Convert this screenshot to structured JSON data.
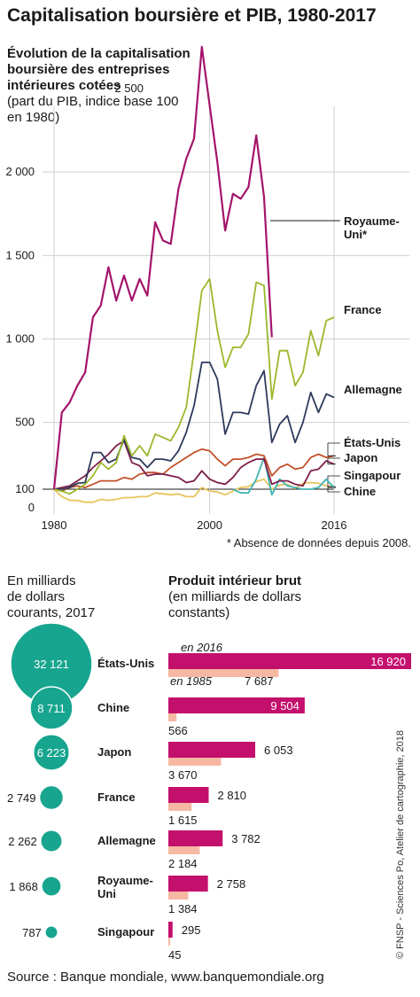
{
  "title": "Capitalisation boursière et PIB, 1980-2017",
  "colors": {
    "uk": "#a3146b",
    "france": "#9bb82c",
    "germany": "#2d3a5c",
    "usa": "#c3512a",
    "japan": "#7d1e4a",
    "singapore": "#e6c45c",
    "china": "#3fb5b3",
    "circle": "#17a58f",
    "gdp2016": "#c4106d",
    "gdp1985": "#f6b8a3"
  },
  "line_chart": {
    "subtitle": "Évolution de la capitalisation boursière des entreprises intérieures cotées",
    "subnote": "(part du PIB, indice base 100 en 1980)",
    "footnote": "* Absence de données depuis 2008."
  },
  "bar_chart": {
    "circles_heading": "En milliards de dollars courants, 2017",
    "gdp_heading": "Produit intérieur brut",
    "gdp_subheading": "(en milliards de dollars constants)",
    "label_2016": "en 2016",
    "label_1985": "en 1985"
  },
  "source": "Source : Banque mondiale, www.banquemondiale.org",
  "credit": "© FNSP - Sciences Po, Atelier de cartographie, 2018",
  "chart_data": [
    {
      "type": "line",
      "title": "Évolution de la capitalisation boursière des entreprises intérieures cotées",
      "ylabel": "(part du PIB, indice base 100 en 1980)",
      "xlim": [
        1980,
        2016
      ],
      "ylim": [
        0,
        2500
      ],
      "x_ticks": [
        "1980",
        "2000",
        "2016"
      ],
      "y_ticks": [
        {
          "value": 0,
          "label": "0"
        },
        {
          "value": 100,
          "label": "100"
        },
        {
          "value": 500,
          "label": "500"
        },
        {
          "value": 1000,
          "label": "1 000"
        },
        {
          "value": 1500,
          "label": "1 500"
        },
        {
          "value": 2000,
          "label": "2 000"
        },
        {
          "value": 2500,
          "label": "2 500"
        }
      ],
      "series": [
        {
          "name": "Royaume-Uni*",
          "key": "uk",
          "x": [
            1980,
            1981,
            1982,
            1983,
            1984,
            1985,
            1986,
            1987,
            1988,
            1989,
            1990,
            1991,
            1992,
            1993,
            1994,
            1995,
            1996,
            1997,
            1998,
            1999,
            2000,
            2001,
            2002,
            2003,
            2004,
            2005,
            2006,
            2007,
            2008
          ],
          "values": [
            100,
            560,
            620,
            720,
            800,
            1130,
            1200,
            1430,
            1230,
            1380,
            1230,
            1360,
            1260,
            1700,
            1590,
            1570,
            1900,
            2080,
            2200,
            2750,
            2400,
            2060,
            1650,
            1870,
            1840,
            1910,
            2220,
            1850,
            1010
          ]
        },
        {
          "name": "France",
          "key": "france",
          "x": [
            1980,
            1981,
            1982,
            1983,
            1984,
            1985,
            1986,
            1987,
            1988,
            1989,
            1990,
            1991,
            1992,
            1993,
            1994,
            1995,
            1996,
            1997,
            1998,
            1999,
            2000,
            2001,
            2002,
            2003,
            2004,
            2005,
            2006,
            2007,
            2008,
            2009,
            2010,
            2011,
            2012,
            2013,
            2014,
            2015,
            2016
          ],
          "values": [
            100,
            90,
            75,
            100,
            130,
            180,
            260,
            220,
            260,
            420,
            300,
            360,
            300,
            430,
            410,
            390,
            470,
            590,
            930,
            1290,
            1360,
            1050,
            830,
            950,
            950,
            1030,
            1340,
            1320,
            640,
            930,
            930,
            720,
            800,
            1050,
            900,
            1110,
            1130
          ]
        },
        {
          "name": "Allemagne",
          "key": "germany",
          "x": [
            1980,
            1981,
            1982,
            1983,
            1984,
            1985,
            1986,
            1987,
            1988,
            1989,
            1990,
            1991,
            1992,
            1993,
            1994,
            1995,
            1996,
            1997,
            1998,
            1999,
            2000,
            2001,
            2002,
            2003,
            2004,
            2005,
            2006,
            2007,
            2008,
            2009,
            2010,
            2011,
            2012,
            2013,
            2014,
            2015,
            2016
          ],
          "values": [
            100,
            100,
            110,
            135,
            140,
            320,
            320,
            260,
            280,
            400,
            290,
            280,
            230,
            280,
            280,
            270,
            330,
            440,
            600,
            860,
            860,
            760,
            430,
            560,
            560,
            550,
            720,
            810,
            380,
            490,
            540,
            380,
            500,
            680,
            560,
            670,
            650
          ]
        },
        {
          "name": "États-Unis",
          "key": "usa",
          "x": [
            1980,
            1981,
            1982,
            1983,
            1984,
            1985,
            1986,
            1987,
            1988,
            1989,
            1990,
            1991,
            1992,
            1993,
            1994,
            1995,
            1996,
            1997,
            1998,
            1999,
            2000,
            2001,
            2002,
            2003,
            2004,
            2005,
            2006,
            2007,
            2008,
            2009,
            2010,
            2011,
            2012,
            2013,
            2014,
            2015,
            2016
          ],
          "values": [
            100,
            90,
            110,
            120,
            110,
            130,
            150,
            150,
            150,
            170,
            160,
            190,
            200,
            200,
            190,
            230,
            260,
            290,
            320,
            340,
            330,
            280,
            240,
            280,
            280,
            290,
            310,
            300,
            180,
            230,
            250,
            220,
            230,
            290,
            310,
            290,
            300
          ]
        },
        {
          "name": "Japon",
          "key": "japan",
          "x": [
            1980,
            1981,
            1982,
            1983,
            1984,
            1985,
            1986,
            1987,
            1988,
            1989,
            1990,
            1991,
            1992,
            1993,
            1994,
            1995,
            1996,
            1997,
            1998,
            1999,
            2000,
            2001,
            2002,
            2003,
            2004,
            2005,
            2006,
            2007,
            2008,
            2009,
            2010,
            2011,
            2012,
            2013,
            2014,
            2015,
            2016
          ],
          "values": [
            100,
            110,
            120,
            150,
            180,
            230,
            270,
            310,
            360,
            390,
            260,
            240,
            180,
            190,
            190,
            180,
            170,
            140,
            150,
            210,
            160,
            140,
            130,
            170,
            230,
            260,
            280,
            280,
            130,
            150,
            150,
            130,
            120,
            210,
            220,
            270,
            250
          ]
        },
        {
          "name": "Singapour",
          "key": "singapore",
          "x": [
            1980,
            1981,
            1982,
            1983,
            1984,
            1985,
            1986,
            1987,
            1988,
            1989,
            1990,
            1991,
            1992,
            1993,
            1994,
            1995,
            1996,
            1997,
            1998,
            1999,
            2000,
            2001,
            2002,
            2003,
            2004,
            2005,
            2006,
            2007,
            2008,
            2009,
            2010,
            2011,
            2012,
            2013,
            2014,
            2015,
            2016
          ],
          "values": [
            100,
            60,
            40,
            40,
            30,
            30,
            45,
            40,
            45,
            55,
            55,
            60,
            60,
            80,
            75,
            70,
            75,
            60,
            60,
            110,
            90,
            85,
            70,
            90,
            110,
            115,
            145,
            160,
            100,
            125,
            130,
            105,
            135,
            140,
            135,
            120,
            115
          ]
        },
        {
          "name": "Chine",
          "key": "china",
          "x": [
            2003,
            2004,
            2005,
            2006,
            2007,
            2008,
            2009,
            2010,
            2011,
            2012,
            2013,
            2014,
            2015,
            2016
          ],
          "values": [
            100,
            80,
            80,
            160,
            290,
            70,
            160,
            120,
            110,
            100,
            100,
            110,
            160,
            110
          ]
        }
      ]
    },
    {
      "type": "bar",
      "title": "Produit intérieur brut",
      "subtitle": "(en milliards de dollars constants)",
      "categories": [
        "États-Unis",
        "Chine",
        "Japon",
        "France",
        "Allemagne",
        "Royaume-Uni",
        "Singapour"
      ],
      "market_cap_label": "En milliards de dollars courants, 2017",
      "market_cap": [
        32121,
        8711,
        6223,
        2749,
        2262,
        1868,
        787
      ],
      "market_cap_labels": [
        "32 121",
        "8 711",
        "6 223",
        "2 749",
        "2 262",
        "1 868",
        "787"
      ],
      "series": [
        {
          "name": "en 2016",
          "values": [
            16920,
            9504,
            6053,
            2810,
            3782,
            2758,
            295
          ],
          "labels": [
            "16 920",
            "9 504",
            "6 053",
            "2 810",
            "3 782",
            "2 758",
            "295"
          ]
        },
        {
          "name": "en 1985",
          "values": [
            7687,
            566,
            3670,
            1615,
            2184,
            1384,
            45
          ],
          "labels": [
            "7 687",
            "566",
            "3 670",
            "1 615",
            "2 184",
            "1 384",
            "45"
          ]
        }
      ]
    }
  ]
}
